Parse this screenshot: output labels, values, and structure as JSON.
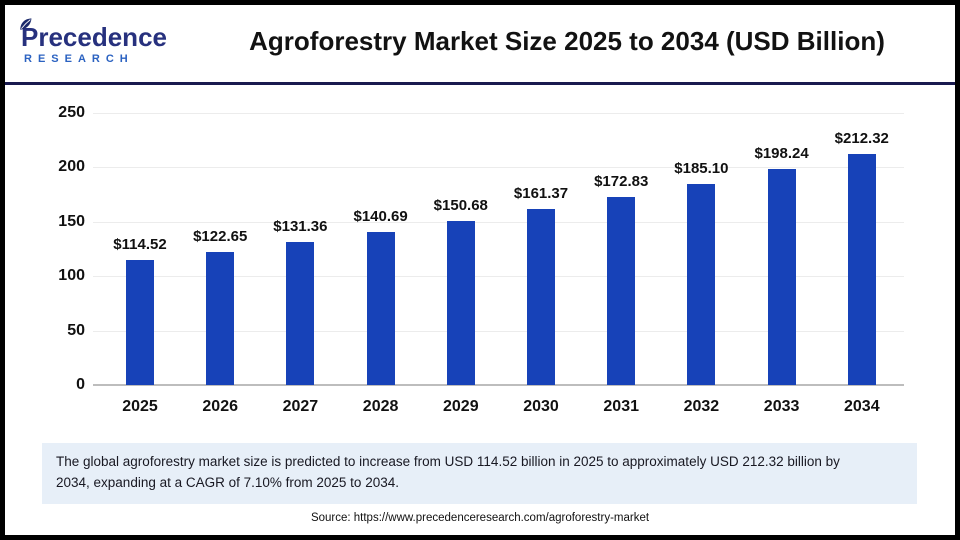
{
  "header": {
    "logo": {
      "line1": "Precedence",
      "line2": "RESEARCH"
    },
    "title": "Agroforestry Market Size 2025 to 2034 (USD Billion)"
  },
  "chart_data": {
    "type": "bar",
    "title": "Agroforestry Market Size 2025 to 2034 (USD Billion)",
    "categories": [
      "2025",
      "2026",
      "2027",
      "2028",
      "2029",
      "2030",
      "2031",
      "2032",
      "2033",
      "2034"
    ],
    "values": [
      114.52,
      122.65,
      131.36,
      140.69,
      150.68,
      161.37,
      172.83,
      185.1,
      198.24,
      212.32
    ],
    "data_labels": [
      "$114.52",
      "$122.65",
      "$131.36",
      "$140.69",
      "$150.68",
      "$161.37",
      "$172.83",
      "$185.10",
      "$198.24",
      "$212.32"
    ],
    "xlabel": "",
    "ylabel": "",
    "ylim": [
      0,
      250
    ],
    "yticks": [
      0,
      50,
      100,
      150,
      200,
      250
    ],
    "grid": "horizontal",
    "legend": "none",
    "bar_color": "#1742b8"
  },
  "summary": "The global agroforestry market size is predicted to increase from USD 114.52 billion in 2025 to approximately USD 212.32 billion by 2034, expanding at a CAGR of 7.10% from 2025 to 2034.",
  "source": "Source: https://www.precedenceresearch.com/agroforestry-market",
  "colors": {
    "bar": "#1742b8",
    "header_rule": "#191a4f",
    "logo_navy": "#27317e",
    "logo_blue": "#2b62c1",
    "summary_bg": "#e7eff8",
    "gridline": "#ececec",
    "baseline": "#bdbdbd"
  }
}
